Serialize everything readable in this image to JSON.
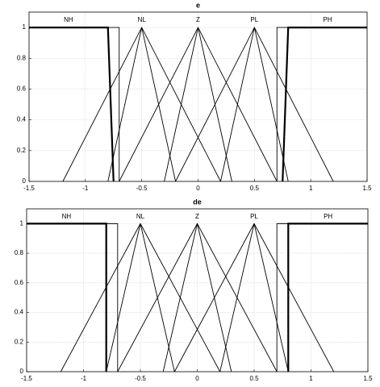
{
  "chart_data": [
    {
      "type": "line",
      "title": "e",
      "xlim": [
        -1.5,
        1.5
      ],
      "ylim": [
        0,
        1.1
      ],
      "xticks": [
        -1.5,
        -1,
        -0.5,
        0,
        0.5,
        1,
        1.5
      ],
      "yticks": [
        0,
        0.2,
        0.4,
        0.6,
        0.8,
        1
      ],
      "grid": true,
      "series": [
        {
          "name": "NH",
          "color": "#000000",
          "linewidth": 2.2,
          "x": [
            -1.5,
            -0.8,
            -0.75
          ],
          "values": [
            1,
            1,
            0
          ]
        },
        {
          "color": "#000000",
          "x": [
            -1.5,
            -0.7,
            -0.7
          ],
          "values": [
            1,
            1,
            0
          ]
        },
        {
          "name": "NL",
          "color": "#000000",
          "x": [
            -1.2,
            -0.5,
            0.2
          ],
          "values": [
            0,
            1,
            0
          ]
        },
        {
          "color": "#000000",
          "x": [
            -0.8,
            -0.5,
            -0.2
          ],
          "values": [
            0,
            1,
            0
          ]
        },
        {
          "name": "Z",
          "color": "#000000",
          "x": [
            -0.7,
            0,
            0.7
          ],
          "values": [
            0,
            1,
            0
          ]
        },
        {
          "color": "#000000",
          "x": [
            -0.3,
            0,
            0.3
          ],
          "values": [
            0,
            1,
            0
          ]
        },
        {
          "name": "PL",
          "color": "#000000",
          "x": [
            -0.2,
            0.5,
            1.2
          ],
          "values": [
            0,
            1,
            0
          ]
        },
        {
          "color": "#000000",
          "x": [
            0.2,
            0.5,
            0.8
          ],
          "values": [
            0,
            1,
            0
          ]
        },
        {
          "name": "PH",
          "color": "#000000",
          "linewidth": 2.2,
          "x": [
            0.75,
            0.8,
            1.5
          ],
          "values": [
            0,
            1,
            1
          ]
        },
        {
          "color": "#000000",
          "x": [
            0.7,
            0.7,
            1.5
          ],
          "values": [
            0,
            1,
            1
          ]
        }
      ]
    },
    {
      "type": "line",
      "title": "de",
      "xlim": [
        -1.5,
        1.5
      ],
      "ylim": [
        0,
        1.1
      ],
      "xticks": [
        -1.5,
        -1,
        -0.5,
        0,
        0.5,
        1,
        1.5
      ],
      "yticks": [
        0,
        0.2,
        0.4,
        0.6,
        0.8,
        1
      ],
      "grid": true,
      "series": [
        {
          "name": "NH",
          "color": "#000000",
          "linewidth": 2.2,
          "x": [
            -1.5,
            -0.8,
            -0.8
          ],
          "values": [
            1,
            1,
            0
          ]
        },
        {
          "color": "#000000",
          "x": [
            -1.5,
            -0.7,
            -0.7
          ],
          "values": [
            1,
            1,
            0
          ]
        },
        {
          "name": "NL",
          "color": "#000000",
          "x": [
            -1.2,
            -0.5,
            0.2
          ],
          "values": [
            0,
            1,
            0
          ]
        },
        {
          "color": "#000000",
          "x": [
            -0.8,
            -0.5,
            -0.2
          ],
          "values": [
            0,
            1,
            0
          ]
        },
        {
          "name": "Z",
          "color": "#000000",
          "x": [
            -0.7,
            0,
            0.7
          ],
          "values": [
            0,
            1,
            0
          ]
        },
        {
          "color": "#000000",
          "x": [
            -0.3,
            0,
            0.3
          ],
          "values": [
            0,
            1,
            0
          ]
        },
        {
          "name": "PL",
          "color": "#000000",
          "x": [
            -0.2,
            0.5,
            1.2
          ],
          "values": [
            0,
            1,
            0
          ]
        },
        {
          "color": "#000000",
          "x": [
            0.2,
            0.5,
            0.8
          ],
          "values": [
            0,
            1,
            0
          ]
        },
        {
          "name": "PH",
          "color": "#000000",
          "linewidth": 2.2,
          "x": [
            0.8,
            0.8,
            1.5
          ],
          "values": [
            0,
            1,
            1
          ]
        },
        {
          "color": "#000000",
          "x": [
            0.7,
            0.7,
            1.5
          ],
          "values": [
            0,
            1,
            1
          ]
        }
      ]
    }
  ]
}
